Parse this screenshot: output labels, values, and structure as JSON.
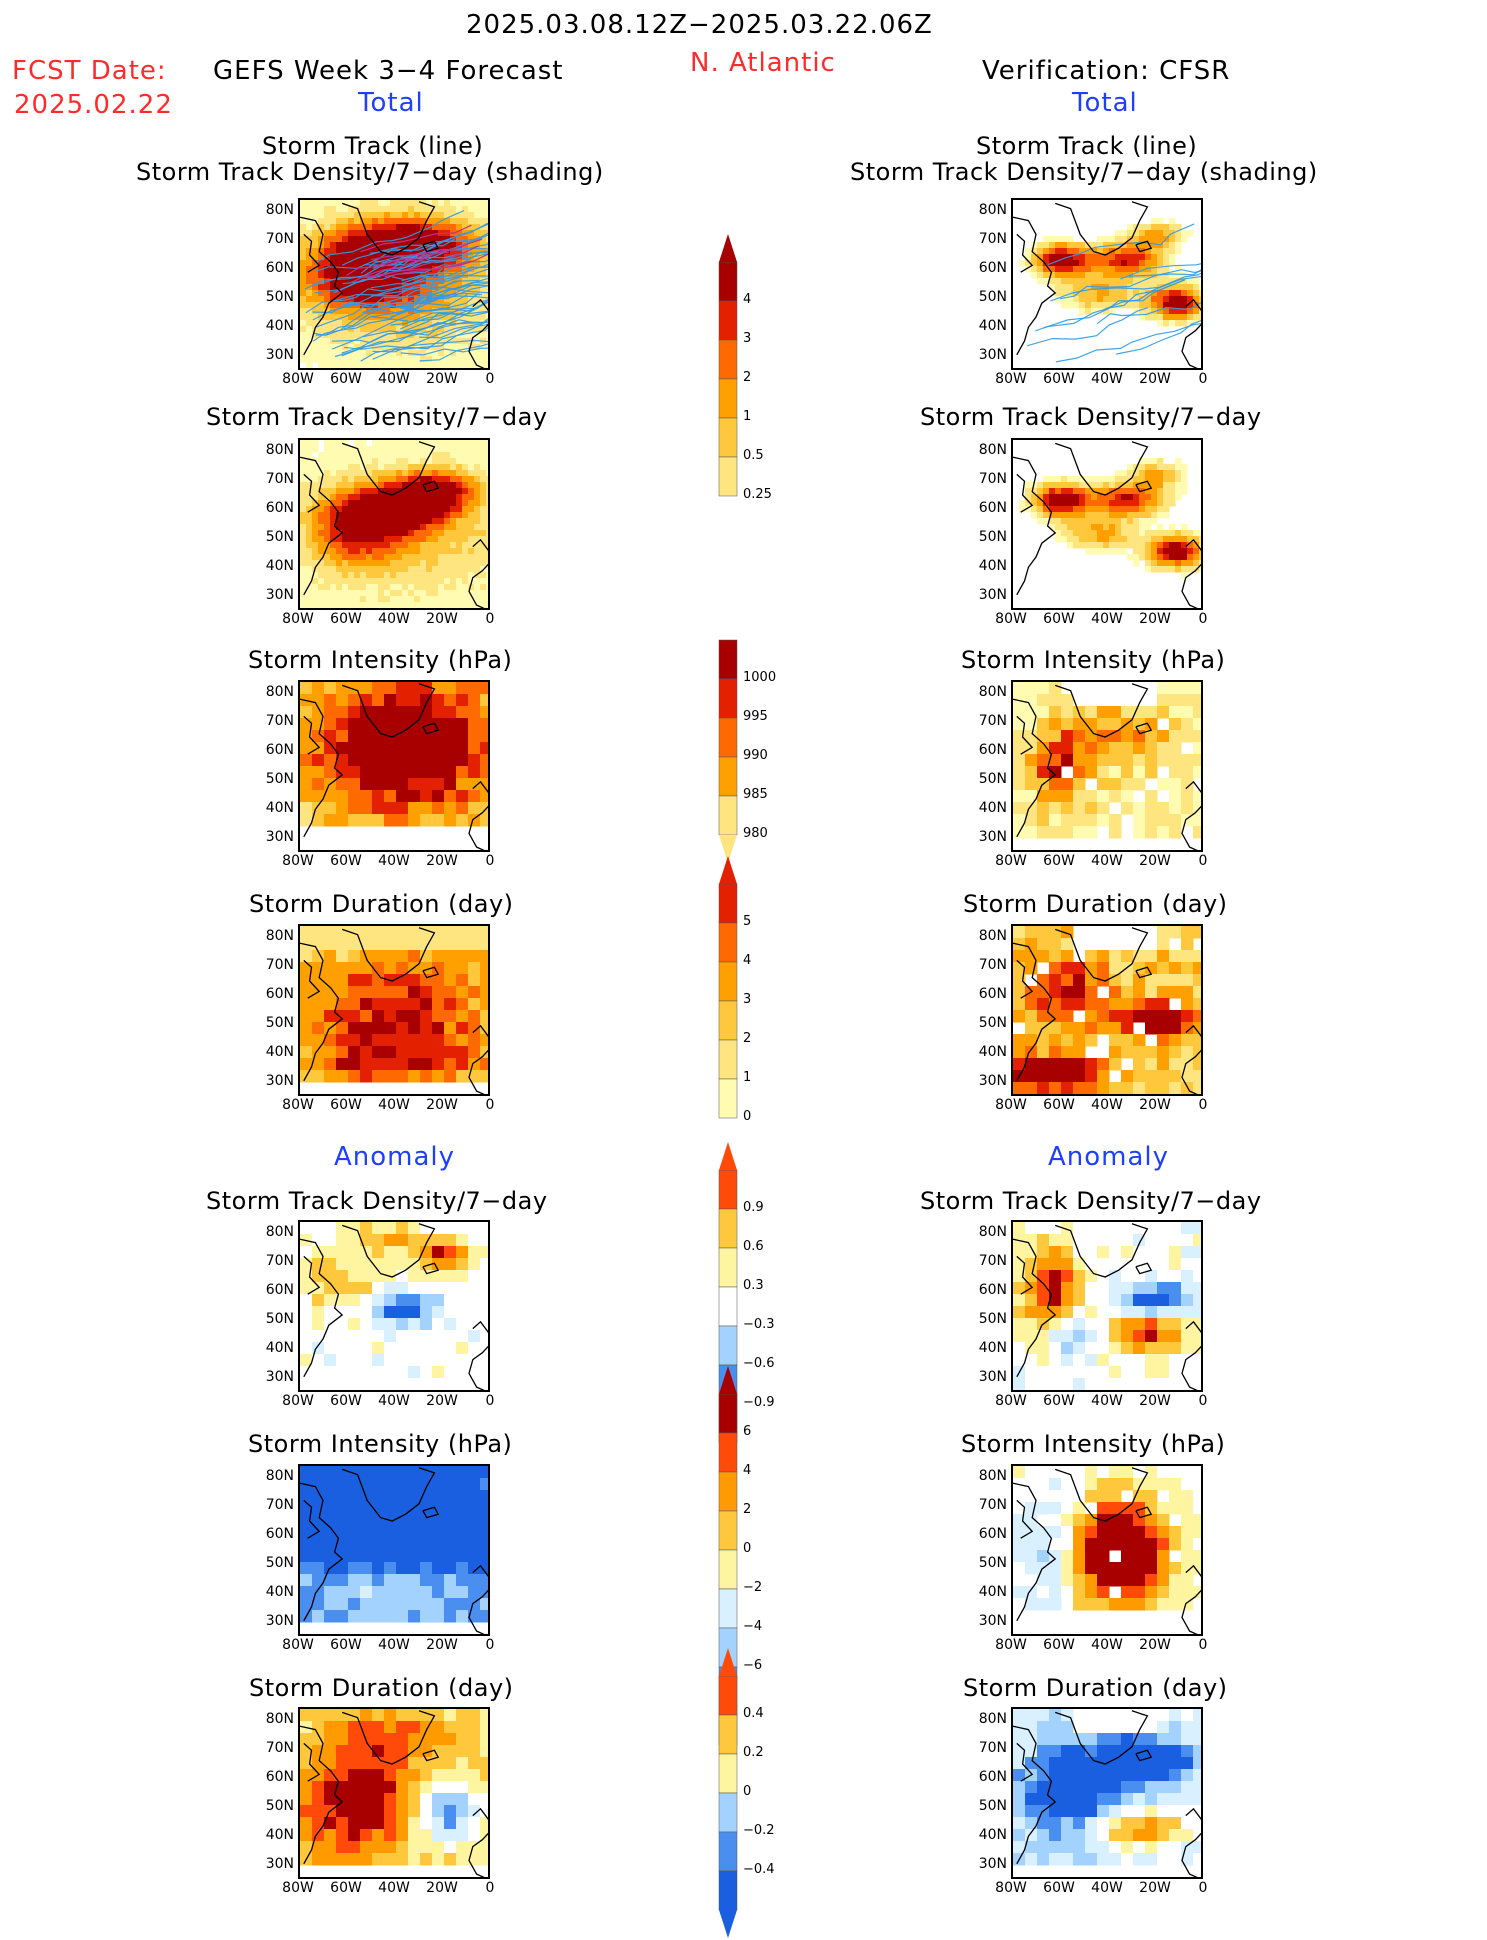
{
  "header": {
    "period": "2025.03.08.12Z−2025.03.22.06Z",
    "fcst_label": "FCST Date:",
    "fcst_date": "2025.02.22",
    "region": "N. Atlantic",
    "left_title": "GEFS Week 3−4 Forecast",
    "right_title": "Verification: CFSR",
    "total_label": "Total",
    "anomaly_label": "Anomaly"
  },
  "axes": {
    "lat_labels": [
      "80N",
      "70N",
      "60N",
      "50N",
      "40N",
      "30N"
    ],
    "lon_labels": [
      "80W",
      "60W",
      "40W",
      "20W",
      "0"
    ]
  },
  "panels": {
    "track_title_1": "Storm Track (line)",
    "track_title_2": "Storm Track Density/7−day (shading)",
    "density": "Storm Track Density/7−day",
    "intensity": "Storm Intensity (hPa)",
    "duration": "Storm Duration (day)"
  },
  "colors": {
    "seq": [
      "#fffbb0",
      "#ffe580",
      "#ffc83c",
      "#ffa000",
      "#ff6a00",
      "#e32000",
      "#a80000"
    ],
    "div": [
      "#1a5fe0",
      "#4a8ef0",
      "#a3d2ff",
      "#d8f0ff",
      "#ffffff",
      "#fff4a0",
      "#ffc83c",
      "#ff9a00",
      "#ff4a0a",
      "#a80000"
    ],
    "track_line": "#2d9be8",
    "track_red": "#c03090"
  },
  "colorbars": [
    {
      "name": "density-total",
      "labels": [
        "4",
        "3",
        "2",
        "1",
        "0.5",
        "0.25"
      ]
    },
    {
      "name": "intensity-total",
      "labels": [
        "1000",
        "995",
        "990",
        "985",
        "980"
      ]
    },
    {
      "name": "duration-total",
      "labels": [
        "5",
        "4",
        "3",
        "2",
        "1",
        "0"
      ]
    },
    {
      "name": "density-anom",
      "labels": [
        "0.9",
        "0.6",
        "0.3",
        "−0.3",
        "−0.6",
        "−0.9"
      ]
    },
    {
      "name": "intensity-anom",
      "labels": [
        "6",
        "4",
        "2",
        "0",
        "−2",
        "−4",
        "−6"
      ]
    },
    {
      "name": "duration-anom",
      "labels": [
        "0.4",
        "0.2",
        "0",
        "−0.2",
        "−0.4"
      ]
    }
  ],
  "chart_data": [
    {
      "type": "heatmap",
      "title": "Storm Track (line) / Storm Track Density/7−day (shading)",
      "column": "GEFS Week 3−4 Forecast",
      "section": "Total",
      "xlim": [
        "80W",
        "0"
      ],
      "ylim": [
        "30N",
        "80N"
      ],
      "color_levels": [
        0.25,
        0.5,
        1,
        2,
        3,
        4
      ]
    },
    {
      "type": "heatmap",
      "title": "Storm Track Density/7−day",
      "column": "GEFS Week 3−4 Forecast",
      "section": "Total",
      "color_levels": [
        0.25,
        0.5,
        1,
        2,
        3,
        4
      ]
    },
    {
      "type": "heatmap",
      "title": "Storm Intensity (hPa)",
      "column": "GEFS Week 3−4 Forecast",
      "section": "Total",
      "color_levels": [
        1000,
        995,
        990,
        985,
        980
      ]
    },
    {
      "type": "heatmap",
      "title": "Storm Duration (day)",
      "column": "GEFS Week 3−4 Forecast",
      "section": "Total",
      "color_levels": [
        0,
        1,
        2,
        3,
        4,
        5
      ]
    },
    {
      "type": "heatmap",
      "title": "Storm Track Density/7−day",
      "column": "GEFS Week 3−4 Forecast",
      "section": "Anomaly",
      "color_levels": [
        -0.9,
        -0.6,
        -0.3,
        0.3,
        0.6,
        0.9
      ]
    },
    {
      "type": "heatmap",
      "title": "Storm Intensity (hPa)",
      "column": "GEFS Week 3−4 Forecast",
      "section": "Anomaly",
      "color_levels": [
        -6,
        -4,
        -2,
        0,
        2,
        4,
        6
      ]
    },
    {
      "type": "heatmap",
      "title": "Storm Duration (day)",
      "column": "GEFS Week 3−4 Forecast",
      "section": "Anomaly",
      "color_levels": [
        -0.4,
        -0.2,
        0,
        0.2,
        0.4
      ]
    },
    {
      "type": "heatmap",
      "title": "Storm Track (line) / Storm Track Density/7−day (shading)",
      "column": "Verification: CFSR",
      "section": "Total",
      "color_levels": [
        0.25,
        0.5,
        1,
        2,
        3,
        4
      ]
    },
    {
      "type": "heatmap",
      "title": "Storm Track Density/7−day",
      "column": "Verification: CFSR",
      "section": "Total",
      "color_levels": [
        0.25,
        0.5,
        1,
        2,
        3,
        4
      ]
    },
    {
      "type": "heatmap",
      "title": "Storm Intensity (hPa)",
      "column": "Verification: CFSR",
      "section": "Total",
      "color_levels": [
        1000,
        995,
        990,
        985,
        980
      ]
    },
    {
      "type": "heatmap",
      "title": "Storm Duration (day)",
      "column": "Verification: CFSR",
      "section": "Total",
      "color_levels": [
        0,
        1,
        2,
        3,
        4,
        5
      ]
    },
    {
      "type": "heatmap",
      "title": "Storm Track Density/7−day",
      "column": "Verification: CFSR",
      "section": "Anomaly",
      "color_levels": [
        -0.9,
        -0.6,
        -0.3,
        0.3,
        0.6,
        0.9
      ]
    },
    {
      "type": "heatmap",
      "title": "Storm Intensity (hPa)",
      "column": "Verification: CFSR",
      "section": "Anomaly",
      "color_levels": [
        -6,
        -4,
        -2,
        0,
        2,
        4,
        6
      ]
    },
    {
      "type": "heatmap",
      "title": "Storm Duration (day)",
      "column": "Verification: CFSR",
      "section": "Anomaly",
      "color_levels": [
        -0.4,
        -0.2,
        0,
        0.2,
        0.4
      ]
    }
  ]
}
